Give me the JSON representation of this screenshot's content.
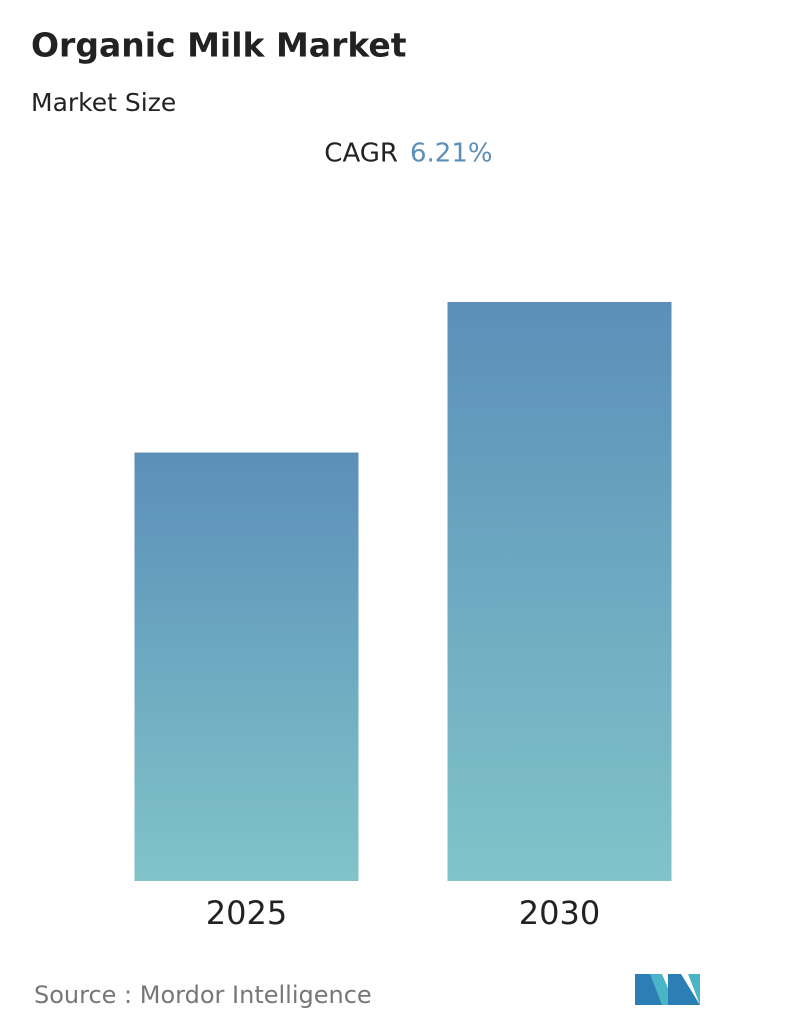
{
  "chart_data": {
    "type": "bar",
    "title": "Organic Milk Market",
    "subtitle": "Market Size",
    "cagr_label": "CAGR",
    "cagr_value": "6.21%",
    "categories": [
      "2025",
      "2030"
    ],
    "values": [
      74,
      100
    ],
    "gradient": [
      "#5b8fb9",
      "#80c4c9"
    ],
    "ylim": [
      0,
      100
    ],
    "source": "Source :  Mordor Intelligence"
  }
}
